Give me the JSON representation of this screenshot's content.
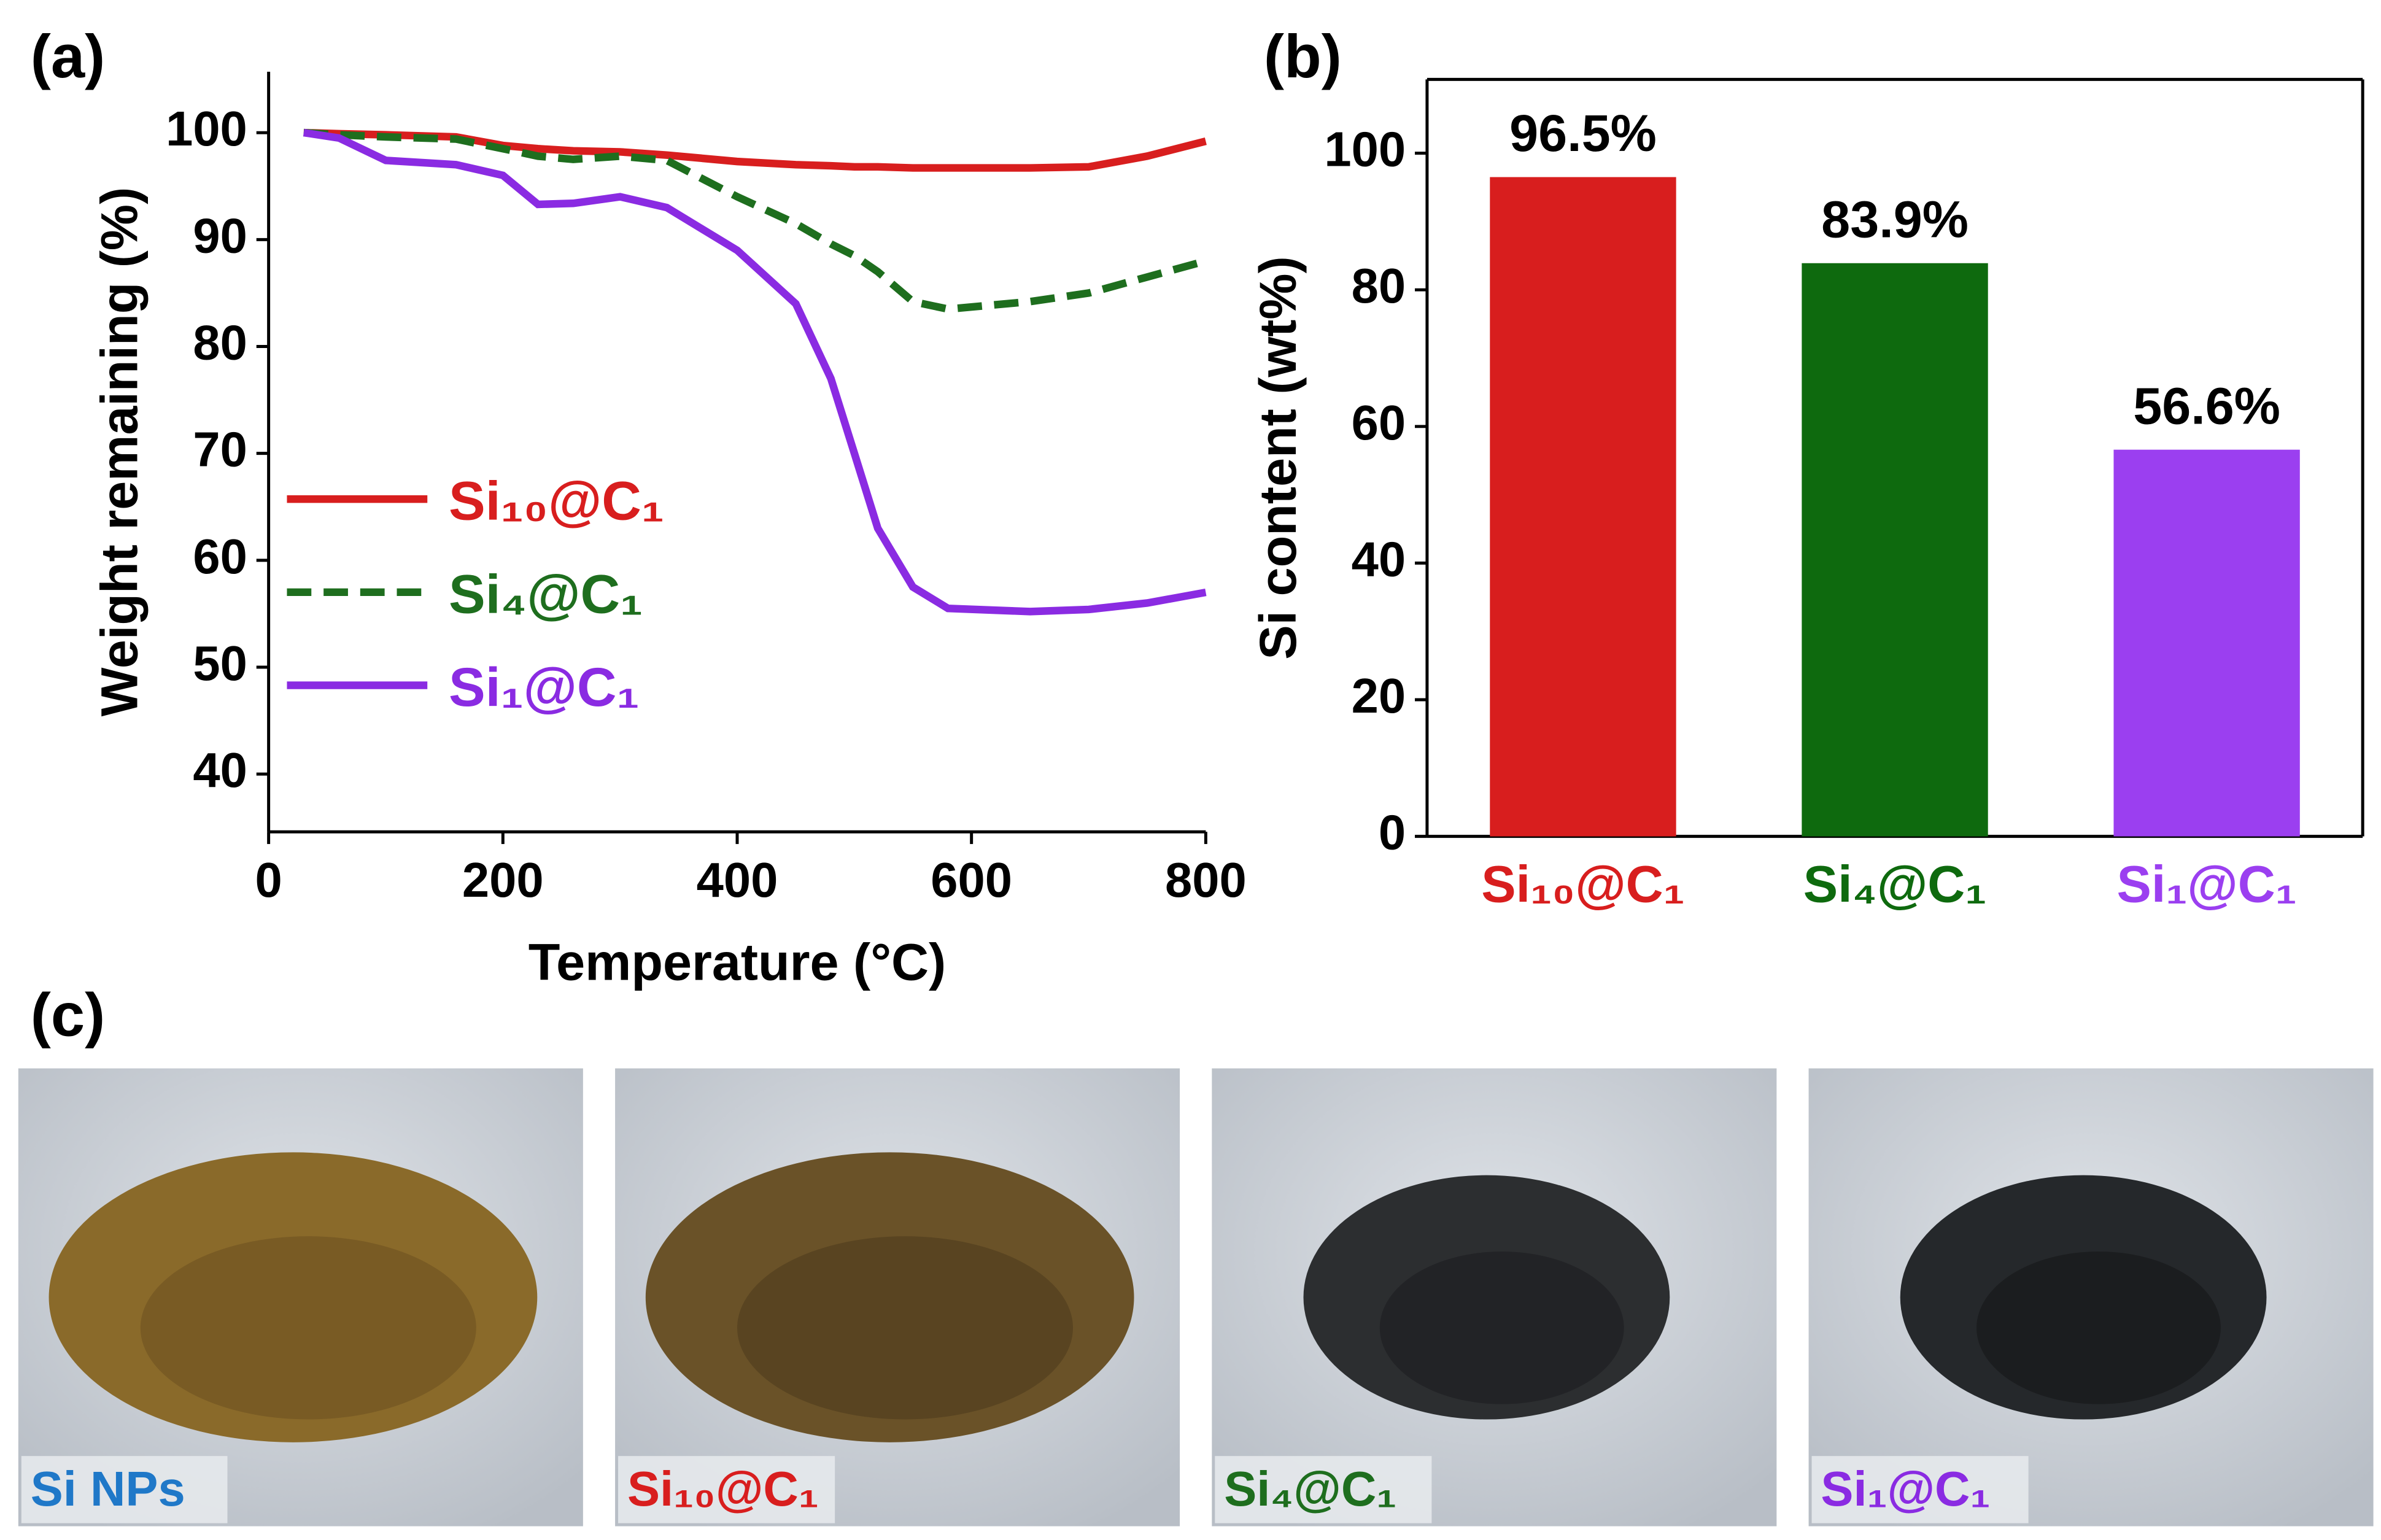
{
  "chart_data": [
    {
      "type": "line",
      "panel": "(a)",
      "xlabel": "Temperature (°C)",
      "ylabel": "Weight remaining (%)",
      "x": [
        30,
        60,
        100,
        160,
        200,
        230,
        260,
        300,
        340,
        400,
        450,
        480,
        500,
        520,
        550,
        580,
        650,
        700,
        750,
        800
      ],
      "series": [
        {
          "name": "Si₁₀@C₁",
          "color": "#d81e1e",
          "dash": false,
          "values": [
            100,
            99.9,
            99.8,
            99.6,
            98.8,
            98.5,
            98.3,
            98.2,
            97.9,
            97.3,
            97,
            96.9,
            96.8,
            96.8,
            96.7,
            96.7,
            96.7,
            96.8,
            97.8,
            99.2
          ]
        },
        {
          "name": "Si₄@C₁",
          "color": "#1e6e1e",
          "dash": true,
          "values": [
            100,
            99.8,
            99.6,
            99.4,
            98.5,
            97.8,
            97.5,
            97.8,
            97.4,
            94,
            91.5,
            89.6,
            88.5,
            87,
            84.2,
            83.5,
            84.2,
            85,
            86.5,
            88
          ]
        },
        {
          "name": "Si₁@C₁",
          "color": "#8a2be2",
          "dash": false,
          "values": [
            100,
            99.5,
            97.4,
            97,
            96,
            93.3,
            93.4,
            94,
            93,
            89,
            84,
            77,
            70,
            63,
            57.5,
            55.5,
            55.2,
            55.4,
            56,
            57
          ]
        }
      ],
      "xlim": [
        0,
        800
      ],
      "xticks": [
        0,
        200,
        400,
        600,
        800
      ],
      "ylim": [
        34.6,
        105.7
      ],
      "yticks": [
        40,
        50,
        60,
        70,
        80,
        90,
        100
      ],
      "legend": "center left"
    },
    {
      "type": "bar",
      "panel": "(b)",
      "ylabel": "Si content (wt%)",
      "categories": [
        "Si₁₀@C₁",
        "Si₄@C₁",
        "Si₁@C₁"
      ],
      "values": [
        96.5,
        83.9,
        56.6
      ],
      "value_labels": [
        "96.5%",
        "83.9%",
        "56.6%"
      ],
      "colors": [
        "#d81e1e",
        "#0e6a0e",
        "#9b3ff0"
      ],
      "ylim": [
        0,
        110.8
      ],
      "yticks": [
        0,
        20,
        40,
        60,
        80,
        100
      ]
    }
  ],
  "photo_panel": {
    "panel": "(c)",
    "items": [
      {
        "label": "Si NPs",
        "color": "#1f78c8"
      },
      {
        "label": "Si₁₀@C₁",
        "color": "#d81e1e"
      },
      {
        "label": "Si₄@C₁",
        "color": "#1e6e1e"
      },
      {
        "label": "Si₁@C₁",
        "color": "#8a2be2"
      }
    ]
  }
}
